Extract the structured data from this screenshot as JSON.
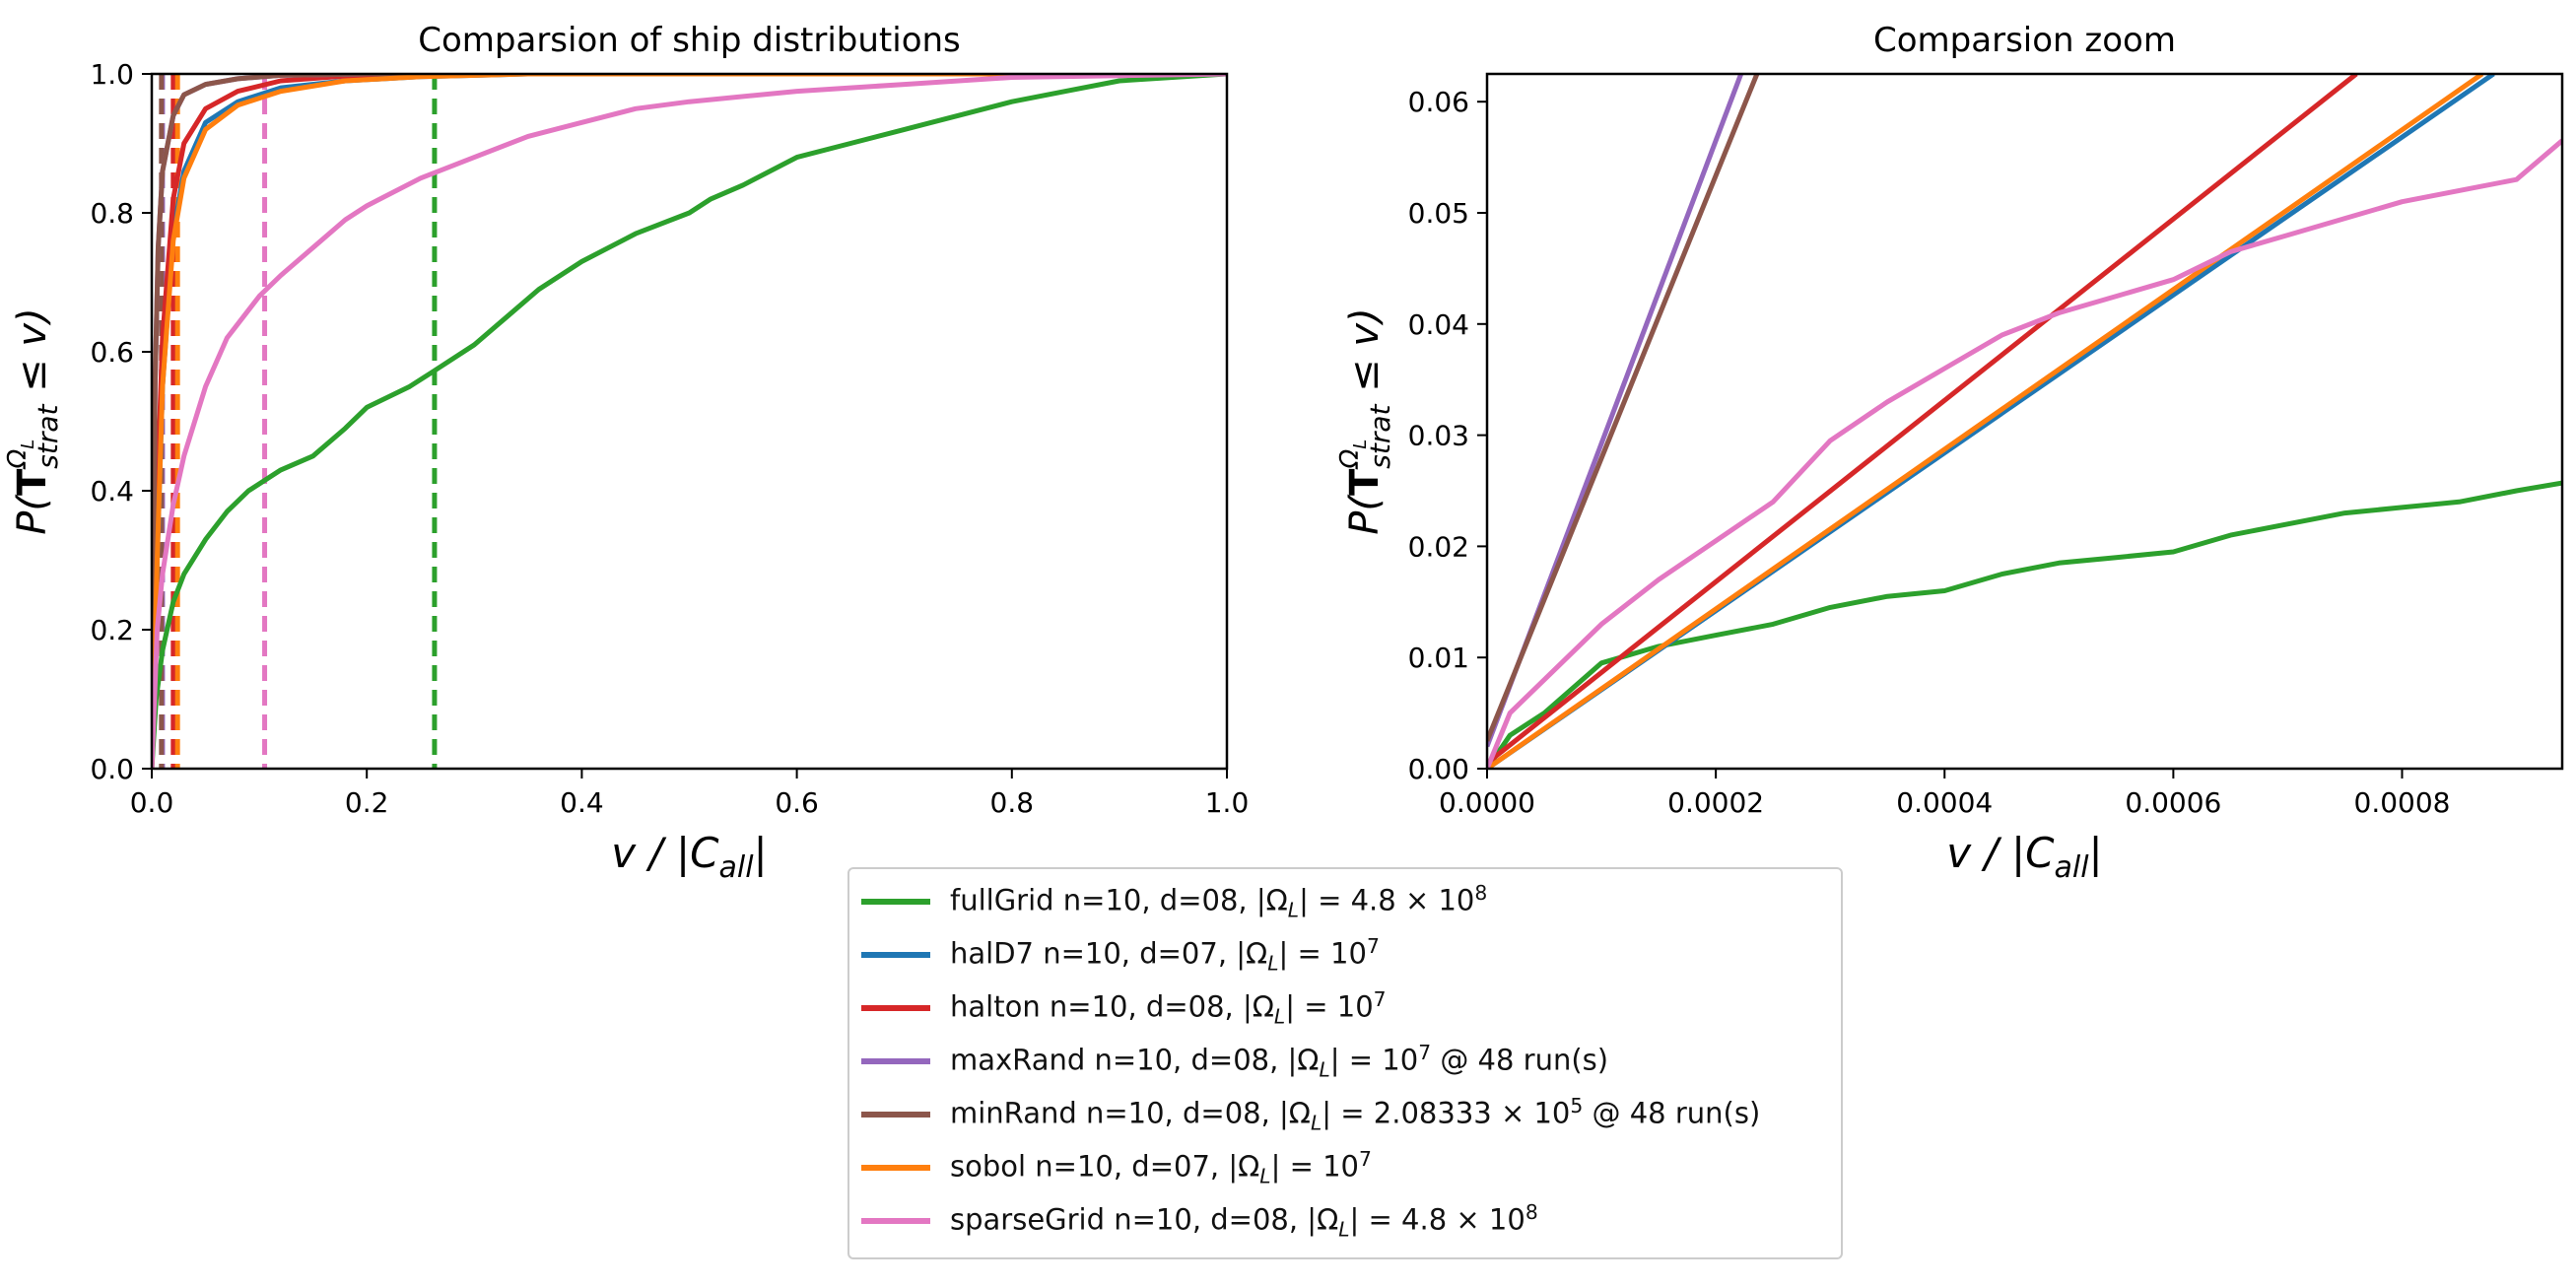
{
  "chart_data": [
    {
      "type": "line",
      "title": "Comparsion of ship distributions",
      "xlabel": "v / |C_all|",
      "ylabel": "P(T^{Ω_L}_{strat} ≤ v)",
      "xlim": [
        0.0,
        1.0
      ],
      "ylim": [
        0.0,
        1.0
      ],
      "xticks": [
        "0.0",
        "0.2",
        "0.4",
        "0.6",
        "0.8",
        "1.0"
      ],
      "yticks": [
        "0.0",
        "0.2",
        "0.4",
        "0.6",
        "0.8",
        "1.0"
      ],
      "grid": false,
      "series": [
        {
          "name": "fullGrid",
          "color": "#2ca02c",
          "dashed_x": 0.263,
          "x": [
            0,
            0.004,
            0.01,
            0.02,
            0.03,
            0.05,
            0.07,
            0.09,
            0.1,
            0.12,
            0.15,
            0.18,
            0.2,
            0.24,
            0.26,
            0.3,
            0.33,
            0.36,
            0.4,
            0.45,
            0.5,
            0.52,
            0.55,
            0.6,
            0.65,
            0.7,
            0.75,
            0.8,
            0.85,
            0.9,
            1.0
          ],
          "y": [
            0,
            0.1,
            0.17,
            0.24,
            0.28,
            0.33,
            0.37,
            0.4,
            0.41,
            0.43,
            0.45,
            0.49,
            0.52,
            0.55,
            0.57,
            0.61,
            0.65,
            0.69,
            0.73,
            0.77,
            0.8,
            0.82,
            0.84,
            0.88,
            0.9,
            0.92,
            0.94,
            0.96,
            0.975,
            0.99,
            1.0
          ]
        },
        {
          "name": "halD7",
          "color": "#1f77b4",
          "dashed_x": 0.022,
          "x": [
            0,
            0.005,
            0.01,
            0.02,
            0.03,
            0.05,
            0.08,
            0.12,
            0.18,
            0.25,
            0.35,
            1.0
          ],
          "y": [
            0,
            0.3,
            0.55,
            0.77,
            0.86,
            0.93,
            0.96,
            0.98,
            0.99,
            0.996,
            1.0,
            1.0
          ]
        },
        {
          "name": "halton",
          "color": "#d62728",
          "dashed_x": 0.02,
          "x": [
            0,
            0.004,
            0.01,
            0.02,
            0.03,
            0.05,
            0.08,
            0.12,
            0.18,
            0.25,
            1.0
          ],
          "y": [
            0,
            0.35,
            0.62,
            0.82,
            0.9,
            0.95,
            0.975,
            0.99,
            0.997,
            1.0,
            1.0
          ]
        },
        {
          "name": "maxRand",
          "color": "#9467bd",
          "dashed_x": 0.01,
          "x": [
            0,
            0.003,
            0.006,
            0.01,
            0.02,
            0.03,
            0.05,
            0.08,
            0.12,
            0.2,
            1.0
          ],
          "y": [
            0,
            0.55,
            0.75,
            0.86,
            0.94,
            0.97,
            0.985,
            0.993,
            0.998,
            1.0,
            1.0
          ]
        },
        {
          "name": "minRand",
          "color": "#8c564b",
          "dashed_x": 0.009,
          "x": [
            0,
            0.003,
            0.006,
            0.01,
            0.02,
            0.03,
            0.05,
            0.08,
            0.12,
            0.2,
            1.0
          ],
          "y": [
            0,
            0.55,
            0.75,
            0.86,
            0.94,
            0.97,
            0.985,
            0.993,
            0.998,
            1.0,
            1.0
          ]
        },
        {
          "name": "sobol",
          "color": "#ff7f0e",
          "dashed_x": 0.024,
          "x": [
            0,
            0.005,
            0.01,
            0.02,
            0.03,
            0.05,
            0.08,
            0.12,
            0.18,
            0.25,
            0.35,
            1.0
          ],
          "y": [
            0,
            0.3,
            0.55,
            0.76,
            0.85,
            0.92,
            0.955,
            0.975,
            0.99,
            0.996,
            1.0,
            1.0
          ]
        },
        {
          "name": "sparseGrid",
          "color": "#e377c2",
          "dashed_x": 0.105,
          "x": [
            0,
            0.005,
            0.01,
            0.02,
            0.03,
            0.05,
            0.07,
            0.09,
            0.1,
            0.12,
            0.15,
            0.18,
            0.2,
            0.25,
            0.3,
            0.35,
            0.4,
            0.45,
            0.5,
            0.6,
            0.7,
            0.8,
            1.0
          ],
          "y": [
            0,
            0.2,
            0.28,
            0.38,
            0.45,
            0.55,
            0.62,
            0.66,
            0.68,
            0.71,
            0.75,
            0.79,
            0.81,
            0.85,
            0.88,
            0.91,
            0.93,
            0.95,
            0.96,
            0.975,
            0.985,
            0.995,
            1.0
          ]
        }
      ]
    },
    {
      "type": "line",
      "title": "Comparsion zoom",
      "xlabel": "v / |C_all|",
      "ylabel": "P(T^{Ω_L}_{strat} ≤ v)",
      "xlim": [
        0.0,
        0.00094
      ],
      "ylim": [
        0.0,
        0.0625
      ],
      "xticks": [
        "0.0000",
        "0.0002",
        "0.0004",
        "0.0006",
        "0.0008"
      ],
      "yticks": [
        "0.00",
        "0.01",
        "0.02",
        "0.03",
        "0.04",
        "0.05",
        "0.06"
      ],
      "grid": false,
      "series": [
        {
          "name": "fullGrid",
          "color": "#2ca02c",
          "x": [
            0,
            2e-05,
            5e-05,
            0.0001,
            0.00015,
            0.0002,
            0.00025,
            0.0003,
            0.00035,
            0.0004,
            0.00045,
            0.0005,
            0.00055,
            0.0006,
            0.00065,
            0.0007,
            0.00075,
            0.0008,
            0.00085,
            0.0009,
            0.00094
          ],
          "y": [
            0,
            0.003,
            0.005,
            0.0095,
            0.011,
            0.012,
            0.013,
            0.0145,
            0.0155,
            0.016,
            0.0175,
            0.0185,
            0.019,
            0.0195,
            0.021,
            0.022,
            0.023,
            0.0235,
            0.024,
            0.025,
            0.0257
          ]
        },
        {
          "name": "halD7",
          "color": "#1f77b4",
          "x": [
            0,
            0.00088
          ],
          "y": [
            0,
            0.0625
          ]
        },
        {
          "name": "halton",
          "color": "#d62728",
          "x": [
            0,
            0.00076
          ],
          "y": [
            0.0005,
            0.0625
          ]
        },
        {
          "name": "maxRand",
          "color": "#9467bd",
          "x": [
            0,
            0.000222
          ],
          "y": [
            0.002,
            0.0625
          ]
        },
        {
          "name": "minRand",
          "color": "#8c564b",
          "x": [
            0,
            0.000236
          ],
          "y": [
            0.0025,
            0.0625
          ]
        },
        {
          "name": "sobol",
          "color": "#ff7f0e",
          "x": [
            0,
            0.00087
          ],
          "y": [
            0,
            0.0625
          ]
        },
        {
          "name": "sparseGrid",
          "color": "#e377c2",
          "x": [
            0,
            2e-05,
            5e-05,
            0.0001,
            0.00015,
            0.0002,
            0.00025,
            0.0003,
            0.00035,
            0.0004,
            0.00045,
            0.0005,
            0.00055,
            0.0006,
            0.00065,
            0.0007,
            0.00075,
            0.0008,
            0.00085,
            0.0009,
            0.00094
          ],
          "y": [
            0,
            0.005,
            0.008,
            0.013,
            0.017,
            0.0205,
            0.024,
            0.0295,
            0.033,
            0.036,
            0.039,
            0.041,
            0.0425,
            0.044,
            0.0465,
            0.048,
            0.0495,
            0.051,
            0.052,
            0.053,
            0.0565
          ]
        }
      ]
    }
  ],
  "legend": {
    "placement": "bottom-center",
    "entries": [
      {
        "color": "#2ca02c",
        "text": "fullGrid n=10, d=08, |Ω",
        "sub": "L",
        "eq": "| = 4.8 × 10",
        "sup": "8",
        "tail": ""
      },
      {
        "color": "#1f77b4",
        "text": "halD7 n=10, d=07, |Ω",
        "sub": "L",
        "eq": "| = 10",
        "sup": "7",
        "tail": ""
      },
      {
        "color": "#d62728",
        "text": "halton n=10, d=08, |Ω",
        "sub": "L",
        "eq": "| = 10",
        "sup": "7",
        "tail": ""
      },
      {
        "color": "#9467bd",
        "text": "maxRand n=10, d=08, |Ω",
        "sub": "L",
        "eq": "| = 10",
        "sup": "7",
        "tail": " @ 48 run(s)"
      },
      {
        "color": "#8c564b",
        "text": "minRand n=10, d=08, |Ω",
        "sub": "L",
        "eq": "| = 2.08333 × 10",
        "sup": "5",
        "tail": " @ 48 run(s)"
      },
      {
        "color": "#ff7f0e",
        "text": "sobol n=10, d=07, |Ω",
        "sub": "L",
        "eq": "| = 10",
        "sup": "7",
        "tail": ""
      },
      {
        "color": "#e377c2",
        "text": "sparseGrid n=10, d=08, |Ω",
        "sub": "L",
        "eq": "| = 4.8 × 10",
        "sup": "8",
        "tail": ""
      }
    ]
  }
}
